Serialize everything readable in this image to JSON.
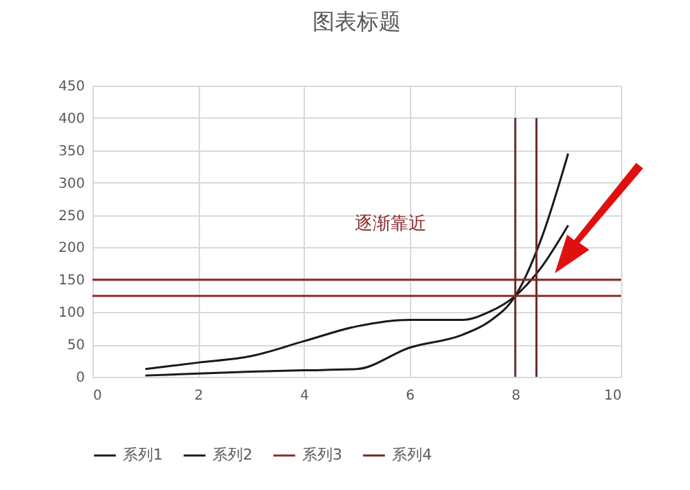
{
  "chart_data": {
    "type": "line",
    "title": "图表标题",
    "series": [
      {
        "name": "系列1",
        "color": "#1a1a1a",
        "x": [
          1,
          2,
          3,
          4,
          5,
          6,
          7,
          7.5,
          8,
          8.5,
          9
        ],
        "values": [
          12,
          22,
          32,
          55,
          78,
          88,
          88,
          100,
          125,
          170,
          234
        ]
      },
      {
        "name": "系列2",
        "color": "#1a1a1a",
        "x": [
          1,
          2,
          3,
          4,
          5,
          6,
          7,
          7.5,
          8,
          8.5,
          9
        ],
        "values": [
          2,
          5,
          8,
          10,
          12,
          45,
          65,
          85,
          125,
          215,
          345
        ]
      },
      {
        "name": "系列3",
        "color": "#8b2c2c",
        "x": [
          0,
          10
        ],
        "values": [
          150,
          150
        ]
      },
      {
        "color": "#8b2c2c",
        "x": [
          0,
          10
        ],
        "values": [
          125,
          125
        ]
      },
      {
        "name": "系列4",
        "color": "#6b2a2a",
        "x": [
          8,
          8
        ],
        "values": [
          0,
          400
        ]
      },
      {
        "color": "#6b2a2a",
        "x": [
          8.4,
          8.4
        ],
        "values": [
          0,
          400
        ]
      }
    ],
    "xlim": [
      0,
      10
    ],
    "xticks": [
      0,
      2,
      4,
      6,
      8,
      10
    ],
    "ylim": [
      0,
      450
    ],
    "yticks": [
      0,
      50,
      100,
      150,
      200,
      250,
      300,
      350,
      400,
      450
    ],
    "grid": true,
    "legend": "bottom",
    "annotations": [
      "逐渐靠近"
    ]
  }
}
